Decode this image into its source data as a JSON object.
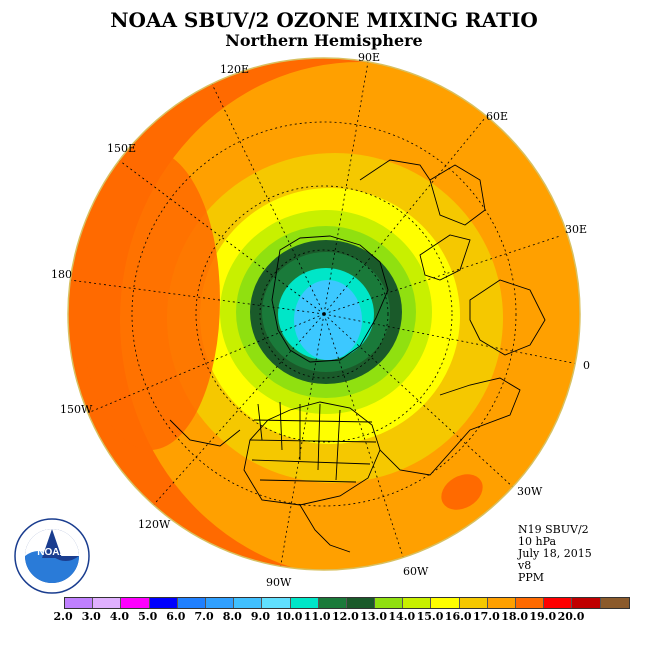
{
  "header": {
    "title": "NOAA SBUV/2 OZONE MIXING RATIO",
    "subtitle": "Northern Hemisphere"
  },
  "map": {
    "projection": "north polar stereographic",
    "longitude_labels": [
      {
        "name": "label-90e",
        "text": "90E"
      },
      {
        "name": "label-120e",
        "text": "120E"
      },
      {
        "name": "label-60e",
        "text": "60E"
      },
      {
        "name": "label-150e",
        "text": "150E"
      },
      {
        "name": "label-30e",
        "text": "30E"
      },
      {
        "name": "label-180",
        "text": "180"
      },
      {
        "name": "label-0",
        "text": "0"
      },
      {
        "name": "label-150w",
        "text": "150W"
      },
      {
        "name": "label-30w",
        "text": "30W"
      },
      {
        "name": "label-120w",
        "text": "120W"
      },
      {
        "name": "label-60w",
        "text": "60W"
      },
      {
        "name": "label-90w",
        "text": "90W"
      }
    ],
    "field_levels_ppm": [
      {
        "level": 10.0,
        "color": "#00e6c8"
      },
      {
        "level": 11.0,
        "color": "#1a7a3a"
      },
      {
        "level": 12.0,
        "color": "#1a5a2a"
      },
      {
        "level": 13.0,
        "color": "#90e010"
      },
      {
        "level": 14.0,
        "color": "#c8f000"
      },
      {
        "level": 15.0,
        "color": "#ffff00"
      },
      {
        "level": 16.0,
        "color": "#f5c800"
      },
      {
        "level": 17.0,
        "color": "#ffa000"
      },
      {
        "level": 18.0,
        "color": "#ff6a00"
      }
    ],
    "pole_color": "#3cc8ff"
  },
  "info": {
    "lines": [
      "N19 SBUV/2",
      "10 hPa",
      "July 18, 2015",
      "v8",
      "PPM"
    ]
  },
  "logo": {
    "icon": "noaa-logo-icon",
    "text": "NOAA"
  },
  "colorbar": {
    "swatches": [
      "#c080ff",
      "#e0b0ff",
      "#ff00ff",
      "#0000ff",
      "#2080ff",
      "#30a0ff",
      "#40c0ff",
      "#60e0ff",
      "#00e6c8",
      "#1a7a3a",
      "#1a5a2a",
      "#90e010",
      "#c8f000",
      "#ffff00",
      "#f5c800",
      "#ffa000",
      "#ff6a00",
      "#ff0000",
      "#c00000",
      "#8b5a2b"
    ],
    "tick_labels": [
      "2.0",
      "3.0",
      "4.0",
      "5.0",
      "6.0",
      "7.0",
      "8.0",
      "9.0",
      "10.0",
      "11.0",
      "12.0",
      "13.0",
      "14.0",
      "15.0",
      "16.0",
      "17.0",
      "18.0",
      "19.0",
      "20.0"
    ]
  }
}
